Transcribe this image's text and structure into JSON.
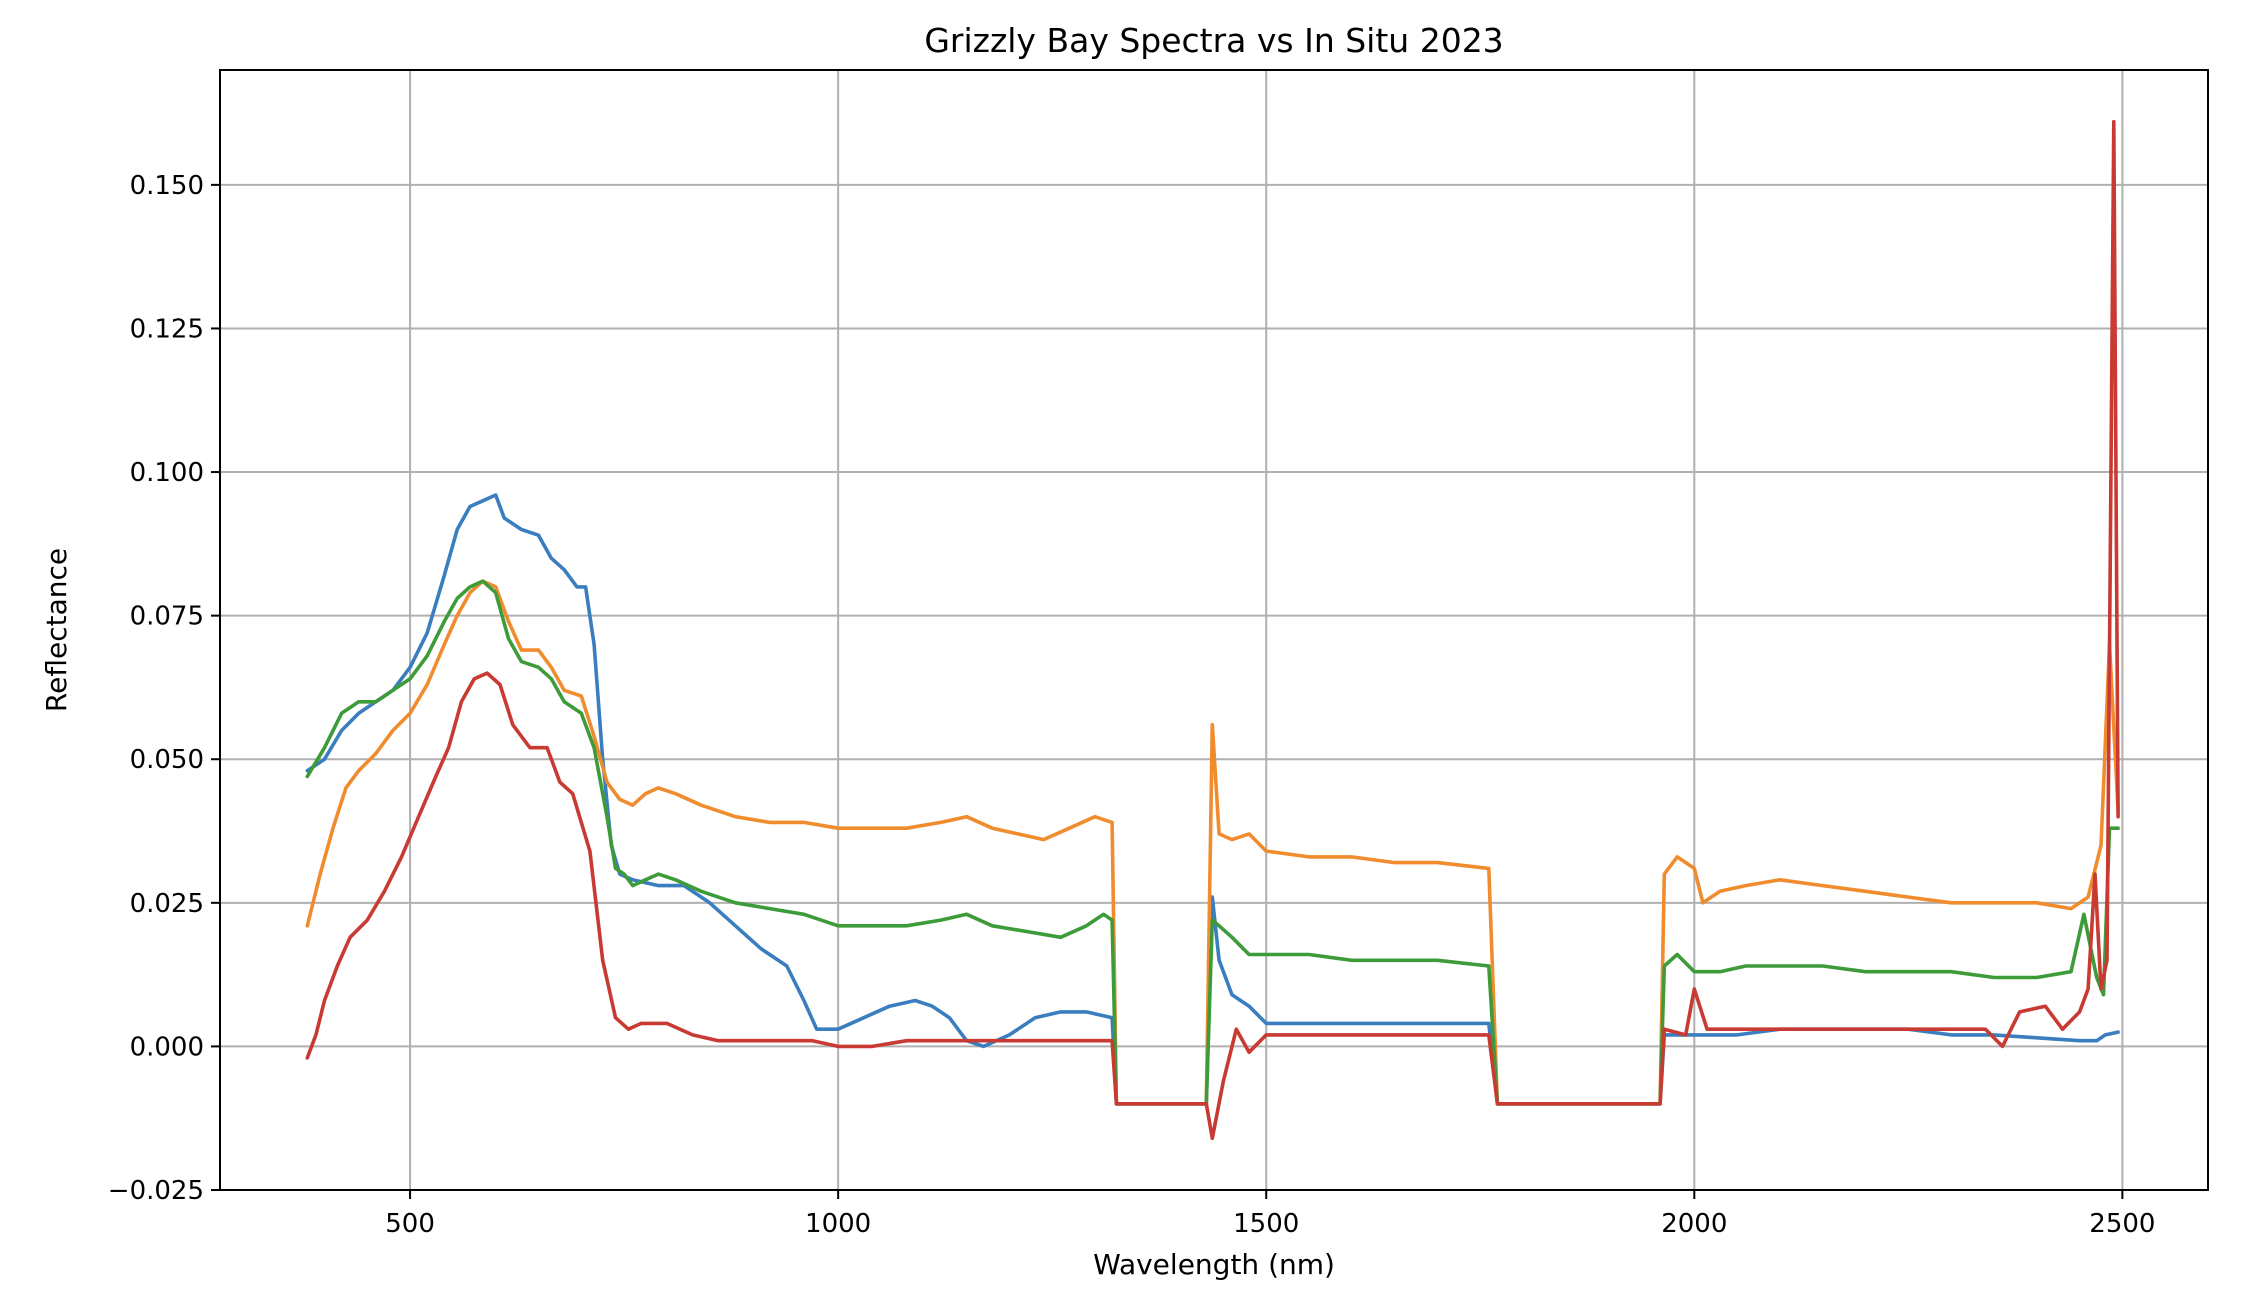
{
  "chart_data": {
    "type": "line",
    "title": "Grizzly Bay Spectra vs In Situ 2023",
    "xlabel": "Wavelength (nm)",
    "ylabel": "Reflectance",
    "xlim": [
      278,
      2600
    ],
    "ylim": [
      -0.025,
      0.17
    ],
    "xticks": [
      500,
      1000,
      1500,
      2000,
      2500
    ],
    "xtick_labels": [
      "500",
      "1000",
      "1500",
      "2000",
      "2500"
    ],
    "yticks": [
      -0.025,
      0.0,
      0.025,
      0.05,
      0.075,
      0.1,
      0.125,
      0.15
    ],
    "ytick_labels": [
      "−0.025",
      "0.000",
      "0.025",
      "0.050",
      "0.075",
      "0.100",
      "0.125",
      "0.150"
    ],
    "grid": true,
    "legend": "none",
    "series": [
      {
        "color": "#3a7ebf",
        "points": [
          [
            380,
            0.048
          ],
          [
            400,
            0.05
          ],
          [
            420,
            0.055
          ],
          [
            440,
            0.058
          ],
          [
            460,
            0.06
          ],
          [
            480,
            0.062
          ],
          [
            500,
            0.066
          ],
          [
            520,
            0.072
          ],
          [
            540,
            0.082
          ],
          [
            555,
            0.09
          ],
          [
            570,
            0.094
          ],
          [
            585,
            0.095
          ],
          [
            600,
            0.096
          ],
          [
            610,
            0.092
          ],
          [
            630,
            0.09
          ],
          [
            650,
            0.089
          ],
          [
            665,
            0.085
          ],
          [
            680,
            0.083
          ],
          [
            695,
            0.08
          ],
          [
            705,
            0.08
          ],
          [
            715,
            0.07
          ],
          [
            725,
            0.05
          ],
          [
            735,
            0.035
          ],
          [
            745,
            0.03
          ],
          [
            760,
            0.029
          ],
          [
            790,
            0.028
          ],
          [
            820,
            0.028
          ],
          [
            850,
            0.025
          ],
          [
            880,
            0.021
          ],
          [
            910,
            0.017
          ],
          [
            940,
            0.014
          ],
          [
            960,
            0.008
          ],
          [
            975,
            0.003
          ],
          [
            1000,
            0.003
          ],
          [
            1030,
            0.005
          ],
          [
            1060,
            0.007
          ],
          [
            1090,
            0.008
          ],
          [
            1110,
            0.007
          ],
          [
            1130,
            0.005
          ],
          [
            1150,
            0.001
          ],
          [
            1170,
            0.0
          ],
          [
            1200,
            0.002
          ],
          [
            1230,
            0.005
          ],
          [
            1260,
            0.006
          ],
          [
            1290,
            0.006
          ],
          [
            1320,
            0.005
          ],
          [
            1325,
            -0.01
          ],
          [
            1430,
            -0.01
          ],
          [
            1437,
            0.026
          ],
          [
            1445,
            0.015
          ],
          [
            1460,
            0.009
          ],
          [
            1480,
            0.007
          ],
          [
            1500,
            0.004
          ],
          [
            1550,
            0.004
          ],
          [
            1600,
            0.004
          ],
          [
            1650,
            0.004
          ],
          [
            1700,
            0.004
          ],
          [
            1760,
            0.004
          ],
          [
            1770,
            -0.01
          ],
          [
            1960,
            -0.01
          ],
          [
            1965,
            0.002
          ],
          [
            2000,
            0.002
          ],
          [
            2050,
            0.002
          ],
          [
            2100,
            0.003
          ],
          [
            2150,
            0.003
          ],
          [
            2200,
            0.003
          ],
          [
            2250,
            0.003
          ],
          [
            2300,
            0.002
          ],
          [
            2350,
            0.002
          ],
          [
            2400,
            0.0015
          ],
          [
            2450,
            0.001
          ],
          [
            2470,
            0.001
          ],
          [
            2480,
            0.002
          ],
          [
            2495,
            0.0025
          ]
        ]
      },
      {
        "color": "#f08c2e",
        "points": [
          [
            380,
            0.021
          ],
          [
            395,
            0.03
          ],
          [
            410,
            0.038
          ],
          [
            425,
            0.045
          ],
          [
            440,
            0.048
          ],
          [
            460,
            0.051
          ],
          [
            480,
            0.055
          ],
          [
            500,
            0.058
          ],
          [
            520,
            0.063
          ],
          [
            540,
            0.07
          ],
          [
            555,
            0.075
          ],
          [
            570,
            0.079
          ],
          [
            585,
            0.081
          ],
          [
            600,
            0.08
          ],
          [
            615,
            0.074
          ],
          [
            630,
            0.069
          ],
          [
            650,
            0.069
          ],
          [
            665,
            0.066
          ],
          [
            680,
            0.062
          ],
          [
            700,
            0.061
          ],
          [
            715,
            0.054
          ],
          [
            730,
            0.046
          ],
          [
            745,
            0.043
          ],
          [
            760,
            0.042
          ],
          [
            775,
            0.044
          ],
          [
            790,
            0.045
          ],
          [
            810,
            0.044
          ],
          [
            840,
            0.042
          ],
          [
            880,
            0.04
          ],
          [
            920,
            0.039
          ],
          [
            960,
            0.039
          ],
          [
            1000,
            0.038
          ],
          [
            1040,
            0.038
          ],
          [
            1080,
            0.038
          ],
          [
            1120,
            0.039
          ],
          [
            1150,
            0.04
          ],
          [
            1180,
            0.038
          ],
          [
            1210,
            0.037
          ],
          [
            1240,
            0.036
          ],
          [
            1270,
            0.038
          ],
          [
            1300,
            0.04
          ],
          [
            1320,
            0.039
          ],
          [
            1325,
            -0.01
          ],
          [
            1430,
            -0.01
          ],
          [
            1437,
            0.056
          ],
          [
            1445,
            0.037
          ],
          [
            1460,
            0.036
          ],
          [
            1480,
            0.037
          ],
          [
            1500,
            0.034
          ],
          [
            1550,
            0.033
          ],
          [
            1600,
            0.033
          ],
          [
            1650,
            0.032
          ],
          [
            1700,
            0.032
          ],
          [
            1760,
            0.031
          ],
          [
            1770,
            -0.01
          ],
          [
            1960,
            -0.01
          ],
          [
            1965,
            0.03
          ],
          [
            1980,
            0.033
          ],
          [
            2000,
            0.031
          ],
          [
            2010,
            0.025
          ],
          [
            2030,
            0.027
          ],
          [
            2060,
            0.028
          ],
          [
            2100,
            0.029
          ],
          [
            2150,
            0.028
          ],
          [
            2200,
            0.027
          ],
          [
            2250,
            0.026
          ],
          [
            2300,
            0.025
          ],
          [
            2350,
            0.025
          ],
          [
            2400,
            0.025
          ],
          [
            2440,
            0.024
          ],
          [
            2460,
            0.026
          ],
          [
            2475,
            0.035
          ],
          [
            2485,
            0.07
          ],
          [
            2495,
            0.041
          ]
        ]
      },
      {
        "color": "#3e9b3a",
        "points": [
          [
            380,
            0.047
          ],
          [
            400,
            0.052
          ],
          [
            420,
            0.058
          ],
          [
            440,
            0.06
          ],
          [
            460,
            0.06
          ],
          [
            480,
            0.062
          ],
          [
            500,
            0.064
          ],
          [
            520,
            0.068
          ],
          [
            540,
            0.074
          ],
          [
            555,
            0.078
          ],
          [
            570,
            0.08
          ],
          [
            585,
            0.081
          ],
          [
            600,
            0.079
          ],
          [
            615,
            0.071
          ],
          [
            630,
            0.067
          ],
          [
            650,
            0.066
          ],
          [
            665,
            0.064
          ],
          [
            680,
            0.06
          ],
          [
            700,
            0.058
          ],
          [
            715,
            0.052
          ],
          [
            730,
            0.04
          ],
          [
            740,
            0.031
          ],
          [
            750,
            0.03
          ],
          [
            760,
            0.028
          ],
          [
            775,
            0.029
          ],
          [
            790,
            0.03
          ],
          [
            810,
            0.029
          ],
          [
            840,
            0.027
          ],
          [
            880,
            0.025
          ],
          [
            920,
            0.024
          ],
          [
            960,
            0.023
          ],
          [
            1000,
            0.021
          ],
          [
            1040,
            0.021
          ],
          [
            1080,
            0.021
          ],
          [
            1120,
            0.022
          ],
          [
            1150,
            0.023
          ],
          [
            1180,
            0.021
          ],
          [
            1220,
            0.02
          ],
          [
            1260,
            0.019
          ],
          [
            1290,
            0.021
          ],
          [
            1310,
            0.023
          ],
          [
            1320,
            0.022
          ],
          [
            1325,
            -0.01
          ],
          [
            1430,
            -0.01
          ],
          [
            1437,
            0.022
          ],
          [
            1445,
            0.021
          ],
          [
            1460,
            0.019
          ],
          [
            1480,
            0.016
          ],
          [
            1500,
            0.016
          ],
          [
            1550,
            0.016
          ],
          [
            1600,
            0.015
          ],
          [
            1650,
            0.015
          ],
          [
            1700,
            0.015
          ],
          [
            1760,
            0.014
          ],
          [
            1770,
            -0.01
          ],
          [
            1960,
            -0.01
          ],
          [
            1965,
            0.014
          ],
          [
            1980,
            0.016
          ],
          [
            2000,
            0.013
          ],
          [
            2030,
            0.013
          ],
          [
            2060,
            0.014
          ],
          [
            2100,
            0.014
          ],
          [
            2150,
            0.014
          ],
          [
            2200,
            0.013
          ],
          [
            2250,
            0.013
          ],
          [
            2300,
            0.013
          ],
          [
            2350,
            0.012
          ],
          [
            2400,
            0.012
          ],
          [
            2440,
            0.013
          ],
          [
            2455,
            0.023
          ],
          [
            2470,
            0.012
          ],
          [
            2478,
            0.009
          ],
          [
            2485,
            0.038
          ],
          [
            2495,
            0.038
          ]
        ]
      },
      {
        "color": "#c83a32",
        "points": [
          [
            380,
            -0.002
          ],
          [
            390,
            0.002
          ],
          [
            400,
            0.008
          ],
          [
            415,
            0.014
          ],
          [
            430,
            0.019
          ],
          [
            450,
            0.022
          ],
          [
            470,
            0.027
          ],
          [
            490,
            0.033
          ],
          [
            510,
            0.04
          ],
          [
            530,
            0.047
          ],
          [
            545,
            0.052
          ],
          [
            560,
            0.06
          ],
          [
            575,
            0.064
          ],
          [
            590,
            0.065
          ],
          [
            605,
            0.063
          ],
          [
            620,
            0.056
          ],
          [
            640,
            0.052
          ],
          [
            660,
            0.052
          ],
          [
            675,
            0.046
          ],
          [
            690,
            0.044
          ],
          [
            710,
            0.034
          ],
          [
            725,
            0.015
          ],
          [
            740,
            0.005
          ],
          [
            755,
            0.003
          ],
          [
            770,
            0.004
          ],
          [
            800,
            0.004
          ],
          [
            830,
            0.002
          ],
          [
            860,
            0.001
          ],
          [
            900,
            0.001
          ],
          [
            940,
            0.001
          ],
          [
            970,
            0.001
          ],
          [
            1000,
            0.0
          ],
          [
            1040,
            0.0
          ],
          [
            1080,
            0.001
          ],
          [
            1120,
            0.001
          ],
          [
            1160,
            0.001
          ],
          [
            1200,
            0.001
          ],
          [
            1240,
            0.001
          ],
          [
            1280,
            0.001
          ],
          [
            1320,
            0.001
          ],
          [
            1325,
            -0.01
          ],
          [
            1430,
            -0.01
          ],
          [
            1437,
            -0.016
          ],
          [
            1450,
            -0.006
          ],
          [
            1465,
            0.003
          ],
          [
            1480,
            -0.001
          ],
          [
            1500,
            0.002
          ],
          [
            1550,
            0.002
          ],
          [
            1600,
            0.002
          ],
          [
            1650,
            0.002
          ],
          [
            1700,
            0.002
          ],
          [
            1760,
            0.002
          ],
          [
            1770,
            -0.01
          ],
          [
            1960,
            -0.01
          ],
          [
            1965,
            0.003
          ],
          [
            1990,
            0.002
          ],
          [
            2000,
            0.01
          ],
          [
            2015,
            0.003
          ],
          [
            2050,
            0.003
          ],
          [
            2100,
            0.003
          ],
          [
            2150,
            0.003
          ],
          [
            2200,
            0.003
          ],
          [
            2250,
            0.003
          ],
          [
            2300,
            0.003
          ],
          [
            2340,
            0.003
          ],
          [
            2360,
            0.0
          ],
          [
            2380,
            0.006
          ],
          [
            2410,
            0.007
          ],
          [
            2430,
            0.003
          ],
          [
            2450,
            0.006
          ],
          [
            2460,
            0.01
          ],
          [
            2468,
            0.03
          ],
          [
            2475,
            0.01
          ],
          [
            2482,
            0.015
          ],
          [
            2490,
            0.161
          ],
          [
            2495,
            0.04
          ]
        ]
      }
    ]
  }
}
